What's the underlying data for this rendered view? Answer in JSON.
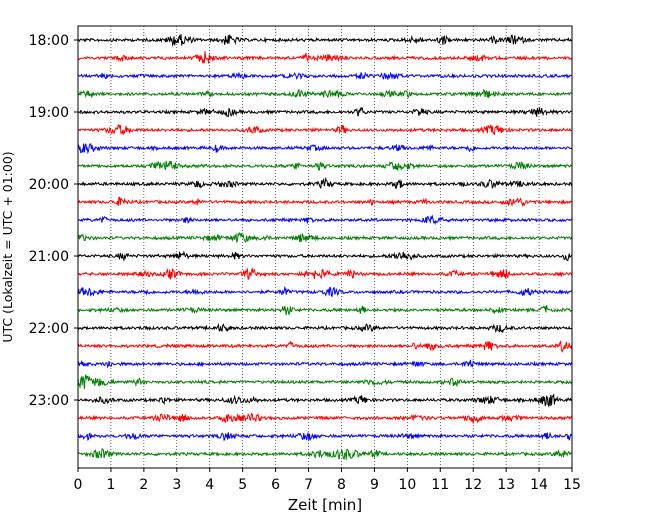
{
  "chart_data": {
    "type": "line",
    "title": "",
    "xlabel": "Zeit  [min]",
    "ylabel": "UTC (Lokalzeit = UTC + 01:00)",
    "xlim": [
      0,
      15
    ],
    "x_ticks": [
      "0",
      "1",
      "2",
      "3",
      "4",
      "5",
      "6",
      "7",
      "8",
      "9",
      "10",
      "11",
      "12",
      "13",
      "14",
      "15"
    ],
    "y_tick_labels": [
      "18:00",
      "19:00",
      "20:00",
      "21:00",
      "22:00",
      "23:00"
    ],
    "grid": "vertical dotted lines at each minute",
    "trace_interval_min": 15,
    "trace_colors": [
      "#000000",
      "#ff0000",
      "#0000ff",
      "#008000"
    ],
    "series": [
      {
        "start": "18:00",
        "color": "#000000"
      },
      {
        "start": "18:15",
        "color": "#ff0000"
      },
      {
        "start": "18:30",
        "color": "#0000ff"
      },
      {
        "start": "18:45",
        "color": "#008000"
      },
      {
        "start": "19:00",
        "color": "#000000"
      },
      {
        "start": "19:15",
        "color": "#ff0000"
      },
      {
        "start": "19:30",
        "color": "#0000ff"
      },
      {
        "start": "19:45",
        "color": "#008000"
      },
      {
        "start": "20:00",
        "color": "#000000"
      },
      {
        "start": "20:15",
        "color": "#ff0000"
      },
      {
        "start": "20:30",
        "color": "#0000ff"
      },
      {
        "start": "20:45",
        "color": "#008000"
      },
      {
        "start": "21:00",
        "color": "#000000"
      },
      {
        "start": "21:15",
        "color": "#ff0000"
      },
      {
        "start": "21:30",
        "color": "#0000ff"
      },
      {
        "start": "21:45",
        "color": "#008000"
      },
      {
        "start": "22:00",
        "color": "#000000"
      },
      {
        "start": "22:15",
        "color": "#ff0000"
      },
      {
        "start": "22:30",
        "color": "#0000ff"
      },
      {
        "start": "22:45",
        "color": "#008000"
      },
      {
        "start": "23:00",
        "color": "#000000"
      },
      {
        "start": "23:15",
        "color": "#ff0000"
      },
      {
        "start": "23:30",
        "color": "#0000ff"
      },
      {
        "start": "23:45",
        "color": "#008000"
      }
    ]
  }
}
